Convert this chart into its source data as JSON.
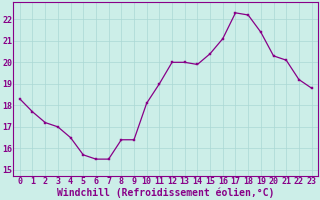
{
  "x": [
    0,
    1,
    2,
    3,
    4,
    5,
    6,
    7,
    8,
    9,
    10,
    11,
    12,
    13,
    14,
    15,
    16,
    17,
    18,
    19,
    20,
    21,
    22,
    23
  ],
  "y": [
    18.3,
    17.7,
    17.2,
    17.0,
    16.5,
    15.7,
    15.5,
    15.5,
    16.4,
    16.4,
    18.1,
    19.0,
    20.0,
    20.0,
    19.9,
    20.4,
    21.1,
    22.3,
    22.2,
    21.4,
    20.3,
    20.1,
    19.2,
    18.8
  ],
  "line_color": "#880088",
  "marker_color": "#880088",
  "bg_color": "#cceee8",
  "grid_color": "#aad8d4",
  "xlabel": "Windchill (Refroidissement éolien,°C)",
  "ylim_bottom": 14.7,
  "ylim_top": 22.8,
  "yticks": [
    15,
    16,
    17,
    18,
    19,
    20,
    21,
    22
  ],
  "xticks": [
    0,
    1,
    2,
    3,
    4,
    5,
    6,
    7,
    8,
    9,
    10,
    11,
    12,
    13,
    14,
    15,
    16,
    17,
    18,
    19,
    20,
    21,
    22,
    23
  ],
  "tick_color": "#880088",
  "label_fontsize": 7.0,
  "tick_fontsize": 6.0,
  "spine_color": "#880088"
}
